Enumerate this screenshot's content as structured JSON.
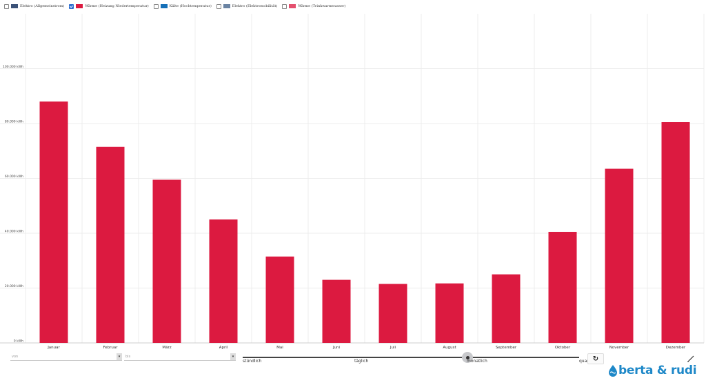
{
  "legend": [
    {
      "label": "Elektro (Allgemeinstrom)",
      "color": "#3b5278",
      "checked": false
    },
    {
      "label": "Wärme (Heizung Niedertemperatur)",
      "color": "#dc1a40",
      "checked": true
    },
    {
      "label": "Kälte (Hochtemperatur)",
      "color": "#1670b8",
      "checked": false
    },
    {
      "label": "Elektro (Elektromobilität)",
      "color": "#6b84a3",
      "checked": false
    },
    {
      "label": "Wärme (Trinkwarmwasser)",
      "color": "#e4506e",
      "checked": false
    }
  ],
  "chart_data": {
    "type": "bar",
    "categories": [
      "Januar",
      "Februar",
      "März",
      "April",
      "Mai",
      "Juni",
      "Juli",
      "August",
      "September",
      "Oktober",
      "November",
      "Dezember"
    ],
    "series": [
      {
        "values": [
          88000,
          71500,
          59500,
          45000,
          31500,
          23000,
          21500,
          21700,
          25000,
          40500,
          63500,
          80500
        ]
      }
    ],
    "yticks": [
      0,
      20000,
      40000,
      60000,
      80000,
      100000
    ],
    "ytick_labels": [
      "0 kWh",
      "20.000 kWh",
      "40.000 kWh",
      "60.000 kWh",
      "80.000 kWh",
      "100.000 kWh"
    ],
    "ylim": [
      0,
      120000
    ],
    "grid": true,
    "bar_color": "#dc1a40"
  },
  "controls": {
    "from_placeholder": "von",
    "to_placeholder": "bis",
    "resolution_options": [
      "stündlich",
      "täglich",
      "monatlich",
      "quartalsweise"
    ],
    "resolution_selected": "monatlich",
    "reset_icon": "refresh-icon",
    "tool_icon": "pencil-icon"
  },
  "brand": {
    "name": "berta & rudi",
    "color": "#1e88c8"
  }
}
